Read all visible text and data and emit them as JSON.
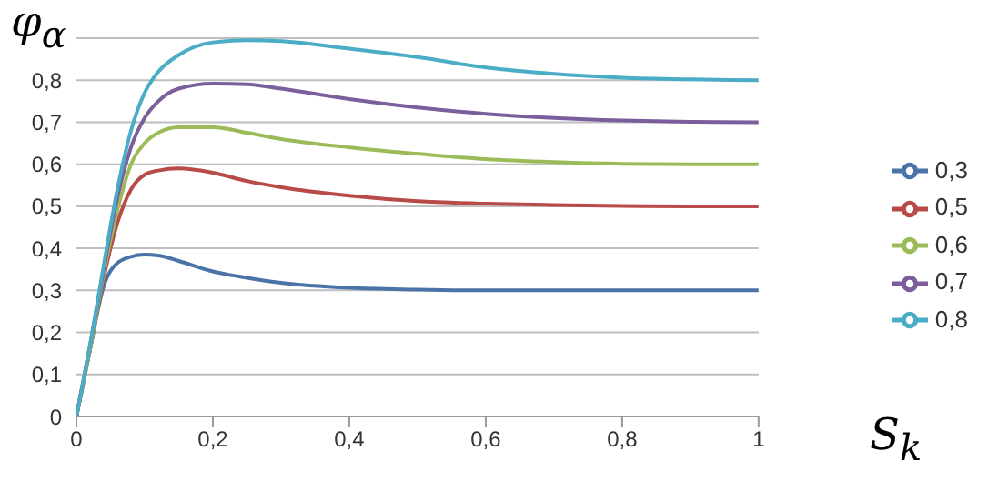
{
  "chart_data": {
    "type": "line",
    "xlabel": "S$_{k}$",
    "ylabel": "φ$_{α}$",
    "x": [
      0,
      0.02,
      0.04,
      0.06,
      0.08,
      0.1,
      0.12,
      0.15,
      0.2,
      0.25,
      0.3,
      0.4,
      0.5,
      0.6,
      0.7,
      0.8,
      0.9,
      1
    ],
    "series": [
      {
        "name": "0,3",
        "color": "#4a73a8",
        "values": [
          0,
          0.16,
          0.31,
          0.365,
          0.38,
          0.385,
          0.383,
          0.37,
          0.345,
          0.33,
          0.318,
          0.306,
          0.302,
          0.3,
          0.3,
          0.3,
          0.3,
          0.3
        ]
      },
      {
        "name": "0,5",
        "color": "#b84a47",
        "values": [
          0,
          0.16,
          0.33,
          0.46,
          0.54,
          0.575,
          0.585,
          0.59,
          0.58,
          0.56,
          0.545,
          0.525,
          0.512,
          0.506,
          0.503,
          0.501,
          0.5,
          0.5
        ]
      },
      {
        "name": "0,6",
        "color": "#9bbb59",
        "values": [
          0,
          0.16,
          0.34,
          0.49,
          0.6,
          0.65,
          0.675,
          0.688,
          0.688,
          0.675,
          0.66,
          0.64,
          0.625,
          0.612,
          0.605,
          0.601,
          0.6,
          0.6
        ]
      },
      {
        "name": "0,7",
        "color": "#7b5e9c",
        "values": [
          0,
          0.17,
          0.35,
          0.52,
          0.64,
          0.71,
          0.75,
          0.78,
          0.792,
          0.79,
          0.78,
          0.755,
          0.735,
          0.72,
          0.71,
          0.704,
          0.701,
          0.7
        ]
      },
      {
        "name": "0,8",
        "color": "#4bacc6",
        "values": [
          0,
          0.17,
          0.36,
          0.54,
          0.68,
          0.77,
          0.82,
          0.86,
          0.89,
          0.895,
          0.893,
          0.875,
          0.855,
          0.83,
          0.815,
          0.806,
          0.802,
          0.8
        ]
      }
    ],
    "xlim": [
      0,
      1
    ],
    "xticks": [
      0,
      {
        "value": 0.2,
        "label": "0,2"
      },
      {
        "value": 0.4,
        "label": "0,4"
      },
      {
        "value": 0.6,
        "label": "0,6"
      },
      {
        "value": 0.8,
        "label": "0,8"
      },
      1
    ],
    "ylim": [
      0,
      0.9
    ],
    "yticks": [
      0,
      {
        "value": 0.1,
        "label": "0,1"
      },
      {
        "value": 0.2,
        "label": "0,2"
      },
      {
        "value": 0.3,
        "label": "0,3"
      },
      {
        "value": 0.4,
        "label": "0,4"
      },
      {
        "value": 0.5,
        "label": "0,5"
      },
      {
        "value": 0.6,
        "label": "0,6"
      },
      {
        "value": 0.7,
        "label": "0,7"
      },
      {
        "value": 0.8,
        "label": "0,8"
      },
      {
        "value": 0.9,
        "label": null
      }
    ],
    "grid": "y",
    "legend": "right",
    "line_style": "solid"
  }
}
